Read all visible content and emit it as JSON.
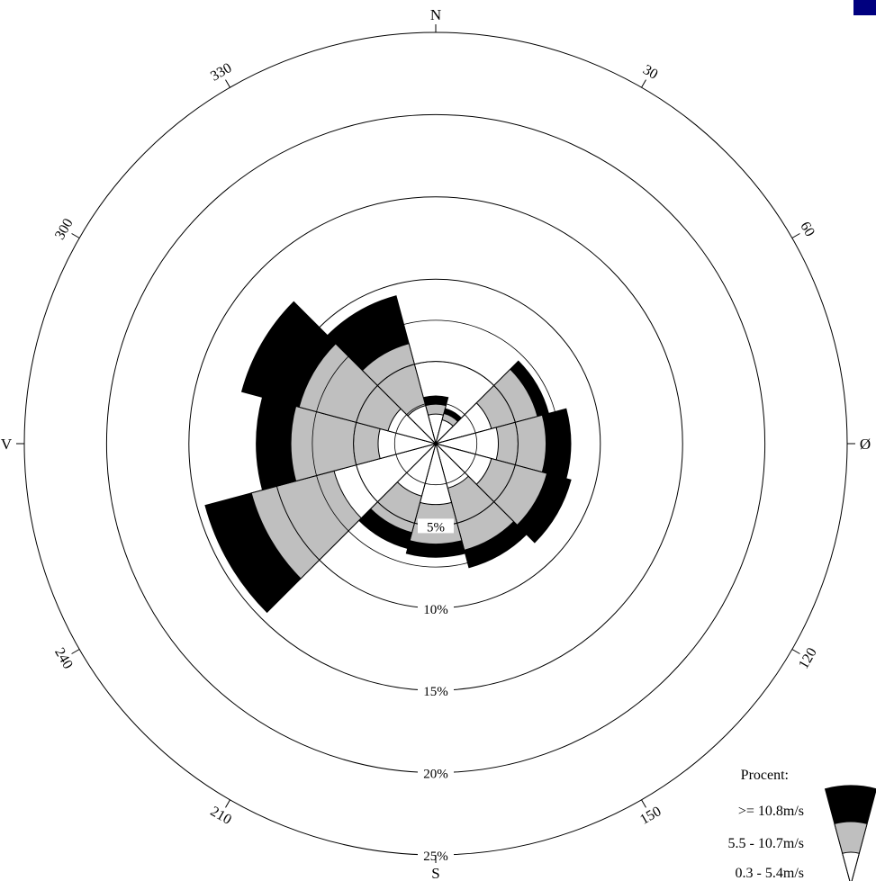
{
  "chart_data": {
    "type": "wind-rose",
    "value_unit": "%",
    "rings": [
      {
        "value": 5,
        "label": "5%"
      },
      {
        "value": 10,
        "label": "10%"
      },
      {
        "value": 15,
        "label": "15%"
      },
      {
        "value": 20,
        "label": "20%"
      },
      {
        "value": 25,
        "label": "25%"
      }
    ],
    "outer_ring": 25,
    "inner_guide_rings": [
      2.5,
      5,
      7.5
    ],
    "compass_labels": [
      {
        "angle": 0,
        "label": "N"
      },
      {
        "angle": 90,
        "label": "Ø"
      },
      {
        "angle": 180,
        "label": "S"
      },
      {
        "angle": 270,
        "label": "V"
      }
    ],
    "degree_labels": [
      {
        "angle": 30,
        "label": "30"
      },
      {
        "angle": 60,
        "label": "60"
      },
      {
        "angle": 120,
        "label": "120"
      },
      {
        "angle": 150,
        "label": "150"
      },
      {
        "angle": 210,
        "label": "210"
      },
      {
        "angle": 240,
        "label": "240"
      },
      {
        "angle": 300,
        "label": "300"
      },
      {
        "angle": 330,
        "label": "330"
      }
    ],
    "sector_width_deg": 30,
    "series": [
      {
        "name": "0.3 - 5.4m/s",
        "color": "#ffffff"
      },
      {
        "name": "5.5 - 10.7m/s",
        "color": "#bfbfbf"
      },
      {
        "name": ">= 10.8m/s",
        "color": "#000000"
      }
    ],
    "sectors": [
      {
        "direction": 0,
        "cumulative": [
          1.8,
          2.4,
          2.9
        ]
      },
      {
        "direction": 30,
        "cumulative": [
          1.5,
          1.9,
          2.2
        ]
      },
      {
        "direction": 60,
        "cumulative": [
          3.5,
          6.4,
          7.1
        ]
      },
      {
        "direction": 90,
        "cumulative": [
          3.8,
          6.7,
          8.2
        ]
      },
      {
        "direction": 120,
        "cumulative": [
          3.5,
          7.0,
          8.5
        ]
      },
      {
        "direction": 150,
        "cumulative": [
          2.8,
          6.7,
          7.8
        ]
      },
      {
        "direction": 180,
        "cumulative": [
          3.7,
          6.1,
          6.9
        ]
      },
      {
        "direction": 210,
        "cumulative": [
          3.3,
          5.6,
          6.6
        ]
      },
      {
        "direction": 240,
        "cumulative": [
          6.4,
          11.6,
          14.5
        ]
      },
      {
        "direction": 270,
        "cumulative": [
          3.5,
          8.8,
          10.9
        ]
      },
      {
        "direction": 300,
        "cumulative": [
          3.0,
          8.6,
          12.2
        ]
      },
      {
        "direction": 330,
        "cumulative": [
          2.4,
          6.3,
          9.3
        ]
      }
    ],
    "legend": {
      "title": "Procent:",
      "placement": "bottom-right",
      "entries": [
        ">= 10.8m/s",
        "5.5 - 10.7m/s",
        "0.3 - 5.4m/s"
      ]
    }
  }
}
